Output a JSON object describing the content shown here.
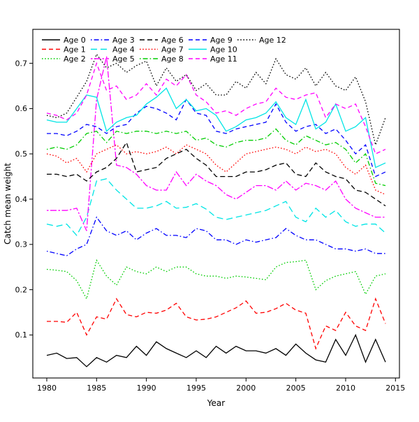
{
  "chart_data": {
    "type": "line",
    "title": "",
    "xlabel": "Year",
    "ylabel": "Catch mean weight",
    "grid": false,
    "legend_position": "top-left-inside",
    "legend_columns": 5,
    "xlim": [
      1978.6,
      2015.4
    ],
    "ylim": [
      0.005,
      0.775
    ],
    "x_ticks": [
      1980,
      1985,
      1990,
      1995,
      2000,
      2005,
      2010,
      2015
    ],
    "x_tick_labels": [
      "1980",
      "1985",
      "1990",
      "1995",
      "2000",
      "2005",
      "2010",
      "2015"
    ],
    "y_ticks": [
      0.1,
      0.2,
      0.3,
      0.4,
      0.5,
      0.6,
      0.7
    ],
    "y_tick_labels": [
      "0.1",
      "0.2",
      "0.3",
      "0.4",
      "0.5",
      "0.6",
      "0.7"
    ],
    "x": [
      1980,
      1981,
      1982,
      1983,
      1984,
      1985,
      1986,
      1987,
      1988,
      1989,
      1990,
      1991,
      1992,
      1993,
      1994,
      1995,
      1996,
      1997,
      1998,
      1999,
      2000,
      2001,
      2002,
      2003,
      2004,
      2005,
      2006,
      2007,
      2008,
      2009,
      2010,
      2011,
      2012,
      2013,
      2014
    ],
    "series": [
      {
        "name": "Age 0",
        "color": "#000000",
        "dash": "",
        "values": [
          0.055,
          0.06,
          0.048,
          0.05,
          0.03,
          0.05,
          0.04,
          0.055,
          0.05,
          0.075,
          0.055,
          0.085,
          0.07,
          0.06,
          0.05,
          0.065,
          0.05,
          0.075,
          0.06,
          0.075,
          0.065,
          0.065,
          0.06,
          0.07,
          0.055,
          0.08,
          0.06,
          0.045,
          0.04,
          0.09,
          0.055,
          0.1,
          0.04,
          0.09,
          0.04
        ]
      },
      {
        "name": "Age 1",
        "color": "#FF0000",
        "dash": "6,4",
        "values": [
          0.13,
          0.13,
          0.128,
          0.15,
          0.1,
          0.14,
          0.135,
          0.18,
          0.145,
          0.14,
          0.15,
          0.148,
          0.155,
          0.17,
          0.14,
          0.133,
          0.135,
          0.14,
          0.15,
          0.16,
          0.175,
          0.148,
          0.15,
          0.158,
          0.17,
          0.155,
          0.148,
          0.07,
          0.12,
          0.11,
          0.15,
          0.12,
          0.11,
          0.18,
          0.125
        ]
      },
      {
        "name": "Age 2",
        "color": "#00CD00",
        "dash": "1.6,2.6",
        "values": [
          0.245,
          0.243,
          0.24,
          0.22,
          0.18,
          0.265,
          0.23,
          0.21,
          0.25,
          0.24,
          0.235,
          0.25,
          0.24,
          0.25,
          0.25,
          0.235,
          0.23,
          0.23,
          0.225,
          0.23,
          0.228,
          0.225,
          0.222,
          0.25,
          0.26,
          0.262,
          0.265,
          0.2,
          0.22,
          0.23,
          0.235,
          0.24,
          0.19,
          0.23,
          0.235
        ]
      },
      {
        "name": "Age 3",
        "color": "#0000FF",
        "dash": "1.6,3,7,3",
        "values": [
          0.285,
          0.28,
          0.275,
          0.29,
          0.3,
          0.36,
          0.33,
          0.32,
          0.33,
          0.31,
          0.325,
          0.335,
          0.32,
          0.32,
          0.315,
          0.335,
          0.33,
          0.31,
          0.31,
          0.3,
          0.31,
          0.305,
          0.31,
          0.315,
          0.335,
          0.32,
          0.31,
          0.31,
          0.3,
          0.29,
          0.29,
          0.285,
          0.29,
          0.28,
          0.28
        ]
      },
      {
        "name": "Age 4",
        "color": "#00E5E5",
        "dash": "9,5",
        "values": [
          0.345,
          0.34,
          0.345,
          0.32,
          0.36,
          0.44,
          0.445,
          0.42,
          0.4,
          0.38,
          0.38,
          0.385,
          0.395,
          0.38,
          0.382,
          0.39,
          0.378,
          0.36,
          0.355,
          0.36,
          0.365,
          0.37,
          0.375,
          0.385,
          0.395,
          0.36,
          0.35,
          0.38,
          0.36,
          0.375,
          0.35,
          0.34,
          0.345,
          0.345,
          0.325
        ]
      },
      {
        "name": "Age 5",
        "color": "#FF00FF",
        "dash": "2.5,2.5,9,2.5",
        "values": [
          0.375,
          0.375,
          0.375,
          0.38,
          0.33,
          0.62,
          0.715,
          0.475,
          0.47,
          0.455,
          0.43,
          0.42,
          0.42,
          0.46,
          0.43,
          0.455,
          0.44,
          0.43,
          0.41,
          0.4,
          0.415,
          0.43,
          0.43,
          0.42,
          0.44,
          0.42,
          0.435,
          0.43,
          0.42,
          0.44,
          0.4,
          0.38,
          0.37,
          0.36,
          0.36
        ]
      },
      {
        "name": "Age 6",
        "color": "#000000",
        "dash": "7,4",
        "values": [
          0.455,
          0.455,
          0.45,
          0.455,
          0.44,
          0.46,
          0.47,
          0.49,
          0.525,
          0.46,
          0.465,
          0.47,
          0.49,
          0.5,
          0.51,
          0.49,
          0.475,
          0.45,
          0.45,
          0.45,
          0.46,
          0.46,
          0.465,
          0.475,
          0.48,
          0.455,
          0.45,
          0.48,
          0.46,
          0.45,
          0.445,
          0.42,
          0.415,
          0.4,
          0.385
        ]
      },
      {
        "name": "Age 7",
        "color": "#FF0000",
        "dash": "1.6,2.6",
        "values": [
          0.5,
          0.495,
          0.48,
          0.49,
          0.46,
          0.5,
          0.51,
          0.52,
          0.5,
          0.505,
          0.5,
          0.505,
          0.515,
          0.5,
          0.52,
          0.51,
          0.5,
          0.475,
          0.46,
          0.48,
          0.5,
          0.505,
          0.51,
          0.515,
          0.51,
          0.5,
          0.515,
          0.505,
          0.51,
          0.5,
          0.47,
          0.455,
          0.475,
          0.42,
          0.41
        ]
      },
      {
        "name": "Age 8",
        "color": "#00CD00",
        "dash": "1.6,3,7,3",
        "values": [
          0.51,
          0.515,
          0.51,
          0.52,
          0.545,
          0.55,
          0.525,
          0.55,
          0.545,
          0.55,
          0.55,
          0.545,
          0.55,
          0.545,
          0.55,
          0.53,
          0.535,
          0.52,
          0.515,
          0.525,
          0.53,
          0.53,
          0.535,
          0.555,
          0.53,
          0.52,
          0.54,
          0.53,
          0.52,
          0.525,
          0.51,
          0.48,
          0.5,
          0.435,
          0.43
        ]
      },
      {
        "name": "Age 9",
        "color": "#0000FF",
        "dash": "6,4",
        "values": [
          0.545,
          0.545,
          0.54,
          0.55,
          0.565,
          0.56,
          0.545,
          0.56,
          0.565,
          0.59,
          0.605,
          0.6,
          0.59,
          0.575,
          0.62,
          0.59,
          0.585,
          0.55,
          0.545,
          0.555,
          0.56,
          0.565,
          0.57,
          0.61,
          0.57,
          0.55,
          0.56,
          0.565,
          0.545,
          0.555,
          0.53,
          0.5,
          0.52,
          0.45,
          0.46
        ]
      },
      {
        "name": "Age 10",
        "color": "#00E5E5",
        "dash": "",
        "values": [
          0.575,
          0.57,
          0.57,
          0.6,
          0.63,
          0.625,
          0.55,
          0.57,
          0.58,
          0.585,
          0.61,
          0.625,
          0.645,
          0.6,
          0.62,
          0.595,
          0.6,
          0.585,
          0.55,
          0.56,
          0.575,
          0.58,
          0.59,
          0.615,
          0.58,
          0.565,
          0.62,
          0.555,
          0.57,
          0.61,
          0.55,
          0.56,
          0.58,
          0.47,
          0.48
        ]
      },
      {
        "name": "Age 11",
        "color": "#FF00FF",
        "dash": "6,4",
        "values": [
          0.59,
          0.585,
          0.575,
          0.59,
          0.63,
          0.7,
          0.64,
          0.65,
          0.62,
          0.63,
          0.655,
          0.63,
          0.665,
          0.65,
          0.675,
          0.63,
          0.615,
          0.59,
          0.595,
          0.585,
          0.6,
          0.61,
          0.615,
          0.645,
          0.625,
          0.62,
          0.63,
          0.635,
          0.58,
          0.61,
          0.6,
          0.61,
          0.56,
          0.5,
          0.51
        ]
      },
      {
        "name": "Age 12",
        "color": "#000000",
        "dash": "1.6,2.6",
        "values": [
          0.585,
          0.58,
          0.59,
          0.625,
          0.66,
          0.72,
          0.69,
          0.7,
          0.68,
          0.695,
          0.705,
          0.65,
          0.69,
          0.66,
          0.675,
          0.64,
          0.655,
          0.63,
          0.63,
          0.66,
          0.645,
          0.68,
          0.655,
          0.71,
          0.675,
          0.665,
          0.69,
          0.65,
          0.68,
          0.65,
          0.64,
          0.67,
          0.615,
          0.52,
          0.58
        ]
      }
    ]
  }
}
